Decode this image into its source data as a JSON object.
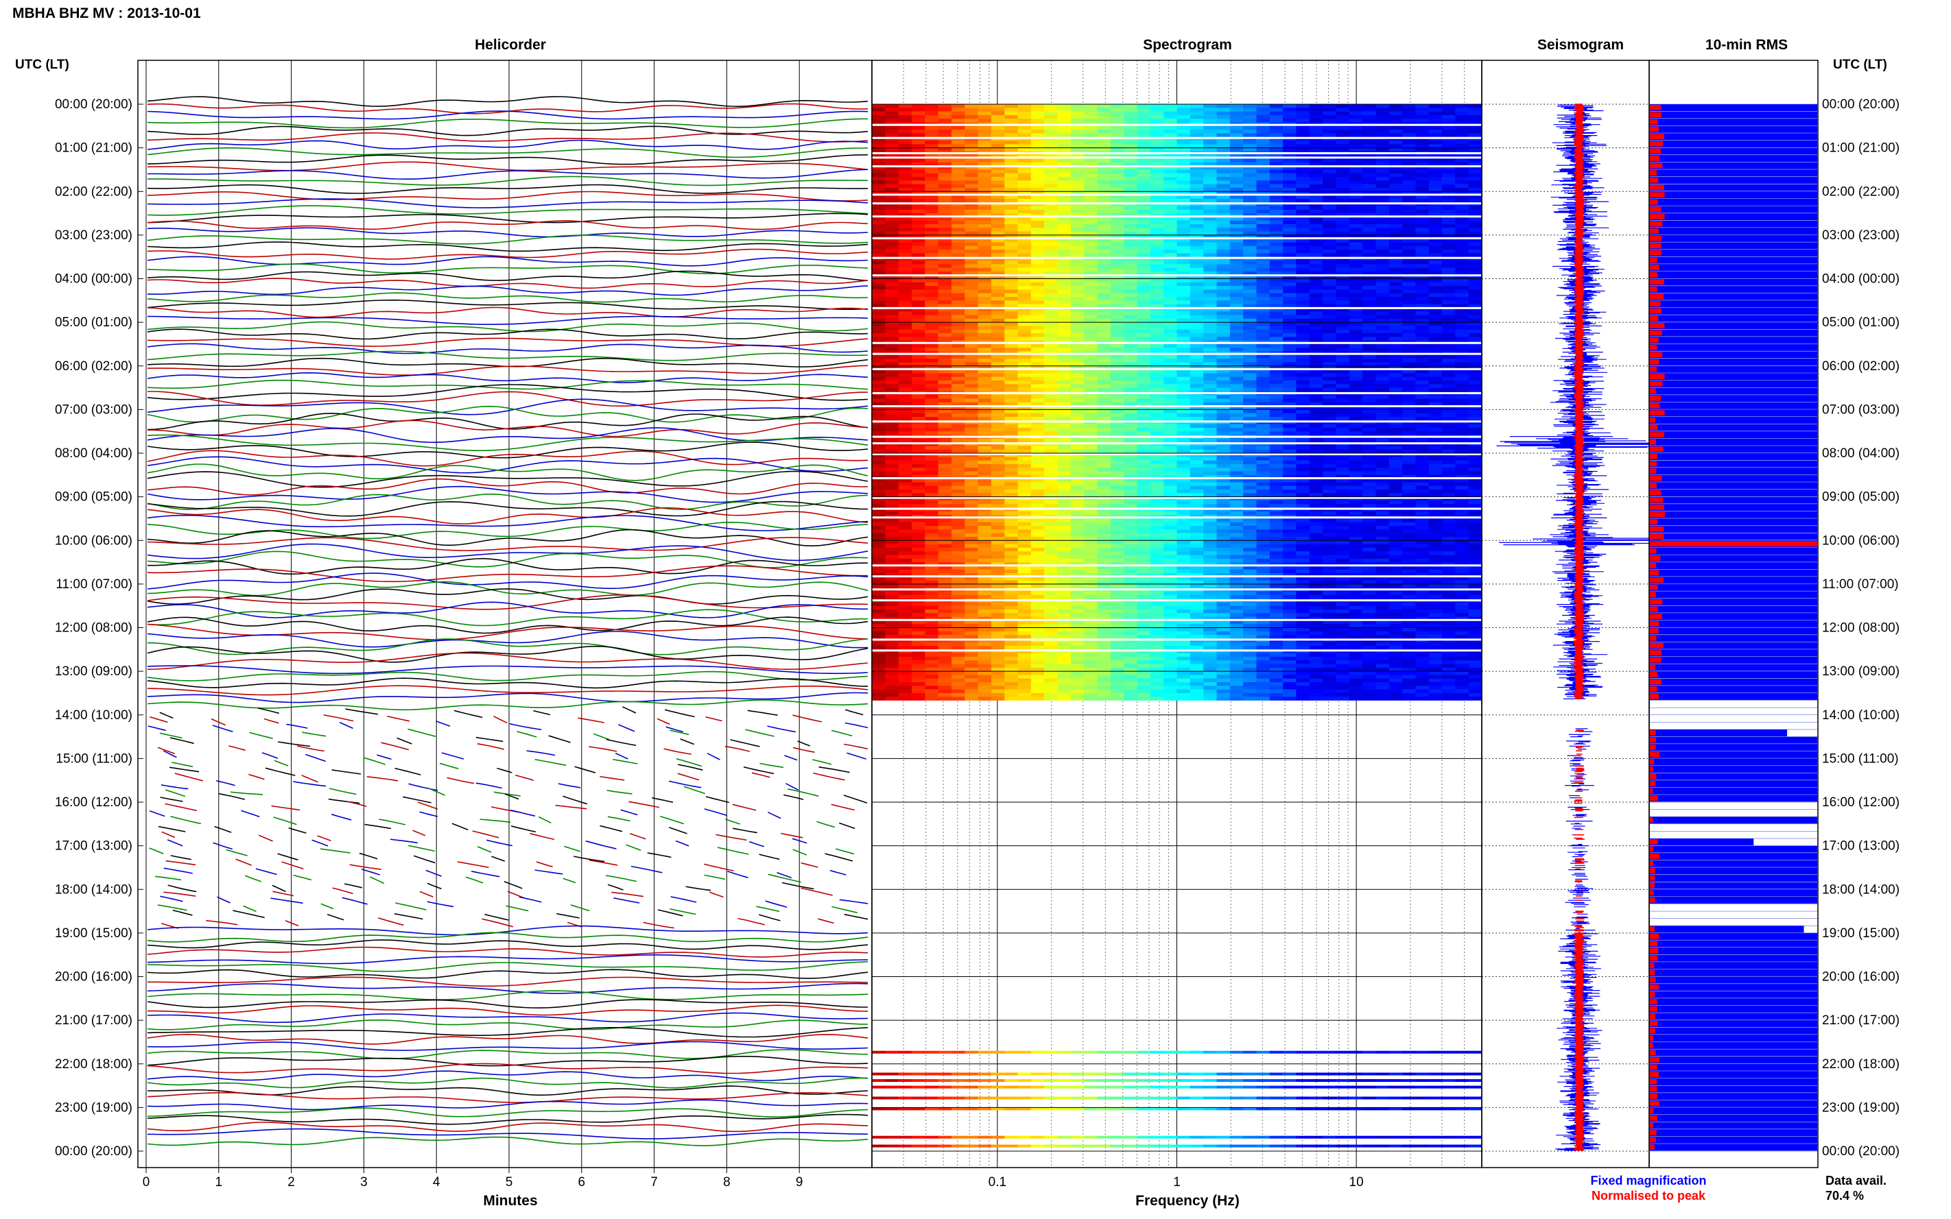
{
  "page": {
    "title": "MBHA BHZ MV : 2013-10-01",
    "panel_titles": {
      "helicorder": "Helicorder",
      "spectrogram": "Spectrogram",
      "seismogram": "Seismogram",
      "rms": "10-min RMS"
    },
    "left_axis_header": "UTC (LT)",
    "right_axis_header": "UTC (LT)"
  },
  "chart_data": [
    {
      "type": "line",
      "name": "Helicorder",
      "xlabel": "Minutes",
      "x_ticks": [
        "0",
        "1",
        "2",
        "3",
        "4",
        "5",
        "6",
        "7",
        "8",
        "9"
      ],
      "xlim": [
        0,
        10
      ],
      "y_tick_labels": [
        "00:00 (20:00)",
        "01:00 (21:00)",
        "02:00 (22:00)",
        "03:00 (23:00)",
        "04:00 (00:00)",
        "05:00 (01:00)",
        "06:00 (02:00)",
        "07:00 (03:00)",
        "08:00 (04:00)",
        "09:00 (05:00)",
        "10:00 (06:00)",
        "11:00 (07:00)",
        "12:00 (08:00)",
        "13:00 (09:00)",
        "14:00 (10:00)",
        "15:00 (11:00)",
        "16:00 (12:00)",
        "17:00 (13:00)",
        "18:00 (14:00)",
        "19:00 (15:00)",
        "20:00 (16:00)",
        "21:00 (17:00)",
        "22:00 (18:00)",
        "23:00 (19:00)",
        "00:00 (20:00)"
      ],
      "trace_colors": [
        "#000000",
        "#bb0000",
        "#0000cc",
        "#008800"
      ],
      "traces_per_hour": 6,
      "continuous_data_hours": [
        [
          0,
          14
        ],
        [
          19,
          24
        ]
      ],
      "gappy_data_hours": [
        [
          14,
          19
        ]
      ]
    },
    {
      "type": "heatmap",
      "name": "Spectrogram",
      "xlabel": "Frequency (Hz)",
      "x_scale": "log",
      "xlim": [
        0.02,
        50
      ],
      "x_ticks": [
        "0.1",
        "1",
        "10"
      ],
      "colormap": "jet",
      "data_hours": [
        [
          0,
          13.65
        ]
      ],
      "isolated_rows_hours": [
        21.7,
        22.2,
        22.35,
        22.5,
        22.75,
        23.0,
        23.65,
        23.85
      ],
      "gap_rows_hours": [
        0.45,
        0.75,
        1.1,
        1.2,
        1.4,
        2.05,
        2.25,
        2.55,
        3.05,
        3.5,
        3.9,
        4.65,
        5.45,
        5.7,
        6.05,
        6.6,
        6.9,
        7.25,
        7.6,
        7.75,
        8.0,
        8.55,
        9.0,
        9.25,
        9.45,
        10.55,
        10.8,
        11.1,
        11.35,
        11.8,
        12.25,
        12.5
      ]
    },
    {
      "type": "line",
      "name": "Seismogram",
      "series": [
        {
          "name": "Fixed magnification",
          "color": "#0000ff"
        },
        {
          "name": "Normalised to peak",
          "color": "#ff0000"
        }
      ],
      "legend": [
        "Fixed magnification",
        "Normalised to peak"
      ],
      "legend_placement": "bottom"
    },
    {
      "type": "bar",
      "name": "10-min RMS",
      "orientation": "horizontal",
      "bin_minutes": 10,
      "series": [
        {
          "name": "RMS",
          "color": "#ff0000"
        },
        {
          "name": "Data availability",
          "color": "#0000ff"
        }
      ],
      "rms_peak_hours": [
        7.75,
        10.0
      ],
      "data_gap_hours": [
        [
          13.65,
          14.3
        ],
        [
          16.0,
          16.25
        ],
        [
          16.4,
          16.75
        ],
        [
          18.2,
          18.75
        ]
      ],
      "data_availability_label": "Data avail.",
      "data_availability_value": "70.4 %"
    }
  ]
}
